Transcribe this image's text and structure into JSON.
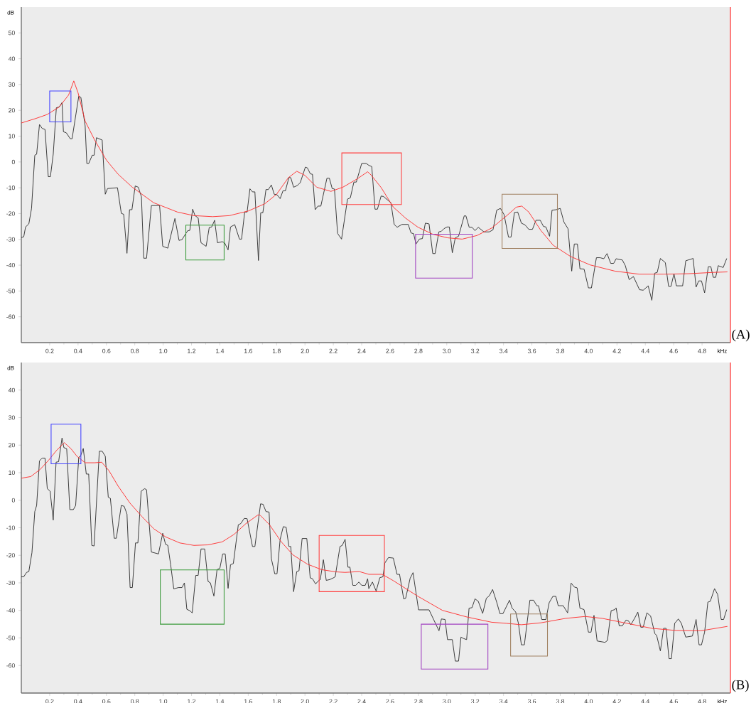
{
  "chart_data": [
    {
      "type": "line",
      "title": "(A)",
      "xlabel": "kHz",
      "ylabel": "dB",
      "marker": "none",
      "xlim": [
        0,
        5
      ],
      "ylim": [
        -70,
        60
      ],
      "xticks": [
        0.2,
        0.4,
        0.6,
        0.8,
        {
          "value": 1.0,
          "label": "1.0"
        },
        1.2,
        1.4,
        1.6,
        1.8,
        {
          "value": 2.0,
          "label": "2.0"
        },
        2.2,
        2.4,
        2.6,
        2.8,
        {
          "value": 3.0,
          "label": "3.0"
        },
        3.2,
        3.4,
        3.6,
        3.8,
        {
          "value": 4.0,
          "label": "4.0"
        },
        4.2,
        4.4,
        4.6,
        4.8
      ],
      "yticks": [
        50,
        40,
        30,
        20,
        10,
        0,
        -10,
        -20,
        -30,
        -40,
        -50,
        -60
      ],
      "ref_lines": [
        {
          "axis": "x",
          "value": 5,
          "color": "#ff4040"
        }
      ],
      "series": [
        {
          "color": "#303030",
          "x": [
            0,
            0.017,
            0.03,
            0.053,
            0.072,
            0.095,
            0.108,
            0.128,
            0.147,
            0.167,
            0.19,
            0.205,
            0.225,
            0.247,
            0.267,
            0.287,
            0.297,
            0.317,
            0.345,
            0.358,
            0.405,
            0.42,
            0.45,
            0.462,
            0.475,
            0.5,
            0.513,
            0.53,
            0.57,
            0.592,
            0.608,
            0.678,
            0.705,
            0.722,
            0.745,
            0.763,
            0.78,
            0.803,
            0.825,
            0.847,
            0.863,
            0.883,
            0.917,
            0.975,
            0.997,
            1.033,
            1.083,
            1.112,
            1.133,
            1.172,
            1.188,
            1.208,
            1.225,
            1.247,
            1.267,
            1.303,
            1.325,
            1.342,
            1.363,
            1.383,
            1.417,
            1.433,
            1.458,
            1.475,
            1.505,
            1.538,
            1.553,
            1.575,
            1.592,
            1.612,
            1.63,
            1.647,
            1.672,
            1.688,
            1.703,
            1.725,
            1.742,
            1.763,
            1.783,
            1.803,
            1.825,
            1.845,
            1.862,
            1.887,
            1.9,
            1.92,
            1.947,
            1.967,
            2.003,
            2.017,
            2.038,
            2.053,
            2.072,
            2.092,
            2.112,
            2.155,
            2.172,
            2.192,
            2.208,
            2.23,
            2.258,
            2.3,
            2.32,
            2.345,
            2.362,
            2.4,
            2.433,
            2.45,
            2.471,
            2.494,
            2.511,
            2.537,
            2.554,
            2.606,
            2.629,
            2.65,
            2.684,
            2.728,
            2.748,
            2.766,
            2.783,
            2.806,
            2.828,
            2.849,
            2.875,
            2.901,
            2.918,
            2.944,
            2.961,
            2.979,
            3.001,
            3.018,
            3.039,
            3.06,
            3.083,
            3.123,
            3.135,
            3.158,
            3.178,
            3.199,
            3.222,
            3.262,
            3.3,
            3.326,
            3.352,
            3.378,
            3.404,
            3.435,
            3.453,
            3.477,
            3.5,
            3.526,
            3.552,
            3.578,
            3.604,
            3.629,
            3.659,
            3.682,
            3.699,
            3.725,
            3.742,
            3.772,
            3.8,
            3.826,
            3.855,
            3.881,
            3.899,
            3.921,
            3.939,
            3.968,
            3.999,
            4.02,
            4.055,
            4.081,
            4.107,
            4.13,
            4.156,
            4.177,
            4.194,
            4.238,
            4.259,
            4.286,
            4.316,
            4.359,
            4.385,
            4.42,
            4.446,
            4.466,
            4.484,
            4.506,
            4.541,
            4.564,
            4.581,
            4.602,
            4.619,
            4.663,
            4.685,
            4.737,
            4.758,
            4.776,
            4.796,
            4.818,
            4.844,
            4.862,
            4.879,
            4.896,
            4.914,
            4.949,
            4.974
          ],
          "values": [
            -29.3,
            -29,
            -25.2,
            -24,
            -18,
            2.6,
            3,
            14.5,
            13,
            12.6,
            -5.7,
            -5.7,
            3,
            21,
            21.3,
            23,
            11.7,
            11.3,
            9,
            9,
            25.5,
            25,
            14,
            -0.6,
            -0.6,
            2.6,
            2.6,
            9.4,
            8.5,
            -12.5,
            -10.3,
            -10,
            -19.9,
            -20.3,
            -35.4,
            -18.5,
            -18.5,
            -9.3,
            -9.8,
            -13.5,
            -37.3,
            -37.3,
            -16.9,
            -16.9,
            -32.7,
            -33.4,
            -21.9,
            -30.4,
            -30.1,
            -26.7,
            -26.5,
            -18.3,
            -20.8,
            -21.7,
            -31.3,
            -32.7,
            -25.4,
            -25.2,
            -22.6,
            -31.3,
            -30.9,
            -31.3,
            -34.1,
            -25.2,
            -24.3,
            -29.9,
            -29.9,
            -19.4,
            -19.4,
            -10.4,
            -11.6,
            -11.6,
            -38.2,
            -19.7,
            -19.7,
            -10.7,
            -10.7,
            -8.9,
            -12.5,
            -12.7,
            -14.2,
            -11.2,
            -11.2,
            -6,
            -6.1,
            -9.8,
            -9.1,
            -8,
            -2,
            -2.3,
            -4.6,
            -4.8,
            -18.5,
            -17.1,
            -17.1,
            -6.3,
            -6.3,
            -10.3,
            -10.5,
            -27.7,
            -29.9,
            -14.4,
            -13.9,
            -7.8,
            -7.8,
            -0.6,
            -0.6,
            -1.3,
            -1.8,
            -18.3,
            -18.3,
            -13.2,
            -13.4,
            -15.8,
            -24.2,
            -25.3,
            -24.2,
            -24.2,
            -27.5,
            -27.8,
            -31.8,
            -29.9,
            -29.7,
            -23.7,
            -24,
            -35.5,
            -35.5,
            -27.1,
            -26.9,
            -25.9,
            -25.2,
            -25.2,
            -35.2,
            -29.4,
            -28.8,
            -20.9,
            -20.9,
            -25.3,
            -25.3,
            -26.6,
            -25.3,
            -27.1,
            -27.1,
            -26.3,
            -18.7,
            -18,
            -20.4,
            -29.1,
            -29.1,
            -19.6,
            -19.4,
            -23.7,
            -24.4,
            -26.1,
            -26.1,
            -22.6,
            -22.6,
            -25,
            -25.2,
            -28.8,
            -18.7,
            -18.5,
            -18,
            -23.3,
            -25.9,
            -42.3,
            -31.8,
            -31.8,
            -41.4,
            -41.5,
            -48.8,
            -48.8,
            -37.1,
            -37.1,
            -37.5,
            -35.5,
            -39.3,
            -39.3,
            -37.5,
            -38,
            -40.2,
            -45.6,
            -44.4,
            -49.5,
            -49.7,
            -48,
            -53.6,
            -43.1,
            -42.8,
            -37.4,
            -39,
            -48.2,
            -48.2,
            -43.3,
            -48,
            -48,
            -38.3,
            -37.4,
            -48.5,
            -46.1,
            -46.1,
            -50.7,
            -40.6,
            -40.6,
            -44.7,
            -44.7,
            -40.2,
            -40.9,
            -37.4
          ]
        },
        {
          "color": "#ff3030",
          "x": [
            0,
            0.1,
            0.183,
            0.267,
            0.333,
            0.37,
            0.4,
            0.45,
            0.517,
            0.6,
            0.683,
            0.783,
            0.933,
            1.1,
            1.217,
            1.35,
            1.467,
            1.6,
            1.717,
            1.8,
            1.883,
            1.942,
            2,
            2.083,
            2.183,
            2.267,
            2.367,
            2.442,
            2.467,
            2.537,
            2.623,
            2.71,
            2.797,
            2.901,
            3.005,
            3.109,
            3.213,
            3.317,
            3.421,
            3.491,
            3.529,
            3.578,
            3.664,
            3.751,
            3.872,
            4.011,
            4.185,
            4.358,
            4.532,
            4.705,
            4.879,
            4.979
          ],
          "values": [
            15.1,
            16.8,
            18.4,
            21.3,
            25.9,
            31.4,
            26.8,
            15.8,
            8.5,
            0.7,
            -4.8,
            -9.8,
            -15.8,
            -19.4,
            -20.8,
            -21.2,
            -20.8,
            -19,
            -16.2,
            -12.5,
            -6.1,
            -3.6,
            -5.2,
            -9.8,
            -11.4,
            -9.8,
            -6.6,
            -3.8,
            -5.1,
            -9.9,
            -17.5,
            -21.8,
            -25.3,
            -28,
            -29.4,
            -29.9,
            -28.5,
            -25.6,
            -20.9,
            -17.5,
            -17.1,
            -19.4,
            -26.6,
            -32.3,
            -36.6,
            -39.9,
            -42.3,
            -43.5,
            -43.5,
            -43.3,
            -42.8,
            -42.6
          ]
        }
      ]
    },
    {
      "type": "line",
      "title": "(B)",
      "xlabel": "kHz",
      "ylabel": "dB",
      "marker": "none",
      "xlim": [
        0,
        5
      ],
      "ylim": [
        -70,
        50
      ],
      "xticks": [
        0.2,
        0.4,
        0.6,
        0.8,
        {
          "value": 1.0,
          "label": "1.0"
        },
        1.2,
        1.4,
        1.6,
        1.8,
        {
          "value": 2.0,
          "label": "2.0"
        },
        2.2,
        2.4,
        2.6,
        2.8,
        {
          "value": 3.0,
          "label": "3.0"
        },
        3.2,
        3.4,
        3.6,
        3.8,
        {
          "value": 4.0,
          "label": "4.0"
        },
        4.2,
        4.4,
        4.6,
        4.8
      ],
      "yticks": [
        40,
        30,
        20,
        10,
        0,
        -10,
        -20,
        -30,
        -40,
        -50,
        -60
      ],
      "ref_lines": [
        {
          "axis": "x",
          "value": 5,
          "color": "#ff4040"
        }
      ],
      "series": [
        {
          "color": "#303030",
          "x": [
            0,
            0.017,
            0.037,
            0.053,
            0.075,
            0.095,
            0.108,
            0.128,
            0.147,
            0.167,
            0.183,
            0.203,
            0.225,
            0.245,
            0.263,
            0.287,
            0.3,
            0.32,
            0.342,
            0.367,
            0.383,
            0.405,
            0.417,
            0.437,
            0.458,
            0.475,
            0.497,
            0.513,
            0.55,
            0.57,
            0.592,
            0.613,
            0.628,
            0.655,
            0.67,
            0.705,
            0.725,
            0.745,
            0.767,
            0.783,
            0.805,
            0.822,
            0.845,
            0.87,
            0.883,
            0.917,
            0.967,
            0.997,
            1.017,
            1.033,
            1.053,
            1.075,
            1.108,
            1.133,
            1.15,
            1.167,
            1.188,
            1.205,
            1.23,
            1.247,
            1.267,
            1.293,
            1.317,
            1.333,
            1.358,
            1.38,
            1.4,
            1.42,
            1.438,
            1.458,
            1.475,
            1.495,
            1.53,
            1.547,
            1.572,
            1.592,
            1.63,
            1.647,
            1.687,
            1.705,
            1.725,
            1.747,
            1.763,
            1.787,
            1.803,
            1.825,
            1.847,
            1.867,
            1.887,
            1.9,
            1.92,
            1.942,
            1.958,
            1.98,
            2.013,
            2.037,
            2.053,
            2.075,
            2.092,
            2.108,
            2.13,
            2.15,
            2.175,
            2.2,
            2.213,
            2.247,
            2.263,
            2.283,
            2.303,
            2.317,
            2.338,
            2.358,
            2.38,
            2.4,
            2.425,
            2.442,
            2.45,
            2.476,
            2.502,
            2.528,
            2.55,
            2.563,
            2.589,
            2.623,
            2.649,
            2.667,
            2.696,
            2.71,
            2.742,
            2.762,
            2.783,
            2.801,
            2.875,
            2.945,
            2.962,
            2.988,
            3.005,
            3.039,
            3.06,
            3.083,
            3.1,
            3.118,
            3.14,
            3.157,
            3.178,
            3.199,
            3.222,
            3.253,
            3.279,
            3.3,
            3.323,
            3.352,
            3.375,
            3.396,
            3.442,
            3.461,
            3.486,
            3.505,
            3.526,
            3.547,
            3.586,
            3.612,
            3.635,
            3.647,
            3.67,
            3.699,
            3.722,
            3.748,
            3.769,
            3.786,
            3.821,
            3.852,
            3.877,
            3.899,
            3.919,
            3.939,
            3.968,
            3.999,
            4.017,
            4.038,
            4.06,
            4.116,
            4.133,
            4.159,
            4.185,
            4.194,
            4.216,
            4.238,
            4.264,
            4.281,
            4.298,
            4.324,
            4.347,
            4.368,
            4.385,
            4.411,
            4.437,
            4.467,
            4.48,
            4.506,
            4.529,
            4.546,
            4.567,
            4.584,
            4.607,
            4.633,
            4.654,
            4.685,
            4.732,
            4.758,
            4.779,
            4.796,
            4.818,
            4.841,
            4.858,
            4.888,
            4.91,
            4.935,
            4.952,
            4.974
          ],
          "values": [
            -27.8,
            -27.8,
            -26.2,
            -25.9,
            -19,
            -4.1,
            -1.9,
            14.3,
            15.3,
            15.3,
            4.2,
            3.3,
            -7.2,
            13.8,
            14,
            22.6,
            19.1,
            18.7,
            -3.4,
            -3.4,
            -1.9,
            15.6,
            16,
            18.8,
            9.5,
            9.5,
            -16.4,
            -16.6,
            17.8,
            17.8,
            16,
            1.1,
            0.7,
            -13.8,
            -13.8,
            -1.9,
            -2.2,
            -5,
            -31.7,
            -31.7,
            -15.5,
            -15.5,
            3.3,
            4.2,
            3.8,
            -18.8,
            -19.5,
            -12,
            -16,
            -16.4,
            -23.4,
            -32.2,
            -31.7,
            -31.7,
            -30,
            -39.6,
            -40.1,
            -40.9,
            -27.3,
            -27.3,
            -17.7,
            -17.7,
            -29.5,
            -30,
            -34.8,
            -25.2,
            -24.7,
            -19.5,
            -19.5,
            -32,
            -23.4,
            -23,
            -8.9,
            -8.5,
            -6.6,
            -6.7,
            -16.8,
            -16.8,
            -1.3,
            -1.5,
            -4.1,
            -4.3,
            -21.2,
            -26.7,
            -26.7,
            -14.2,
            -9.6,
            -9.8,
            -16.8,
            -16.8,
            -33.2,
            -25.9,
            -25.6,
            -13.9,
            -13.9,
            -28.2,
            -28.5,
            -30.4,
            -29.4,
            -28.8,
            -21.6,
            -29.1,
            -28.8,
            -28.2,
            -27.8,
            -16.8,
            -16.4,
            -14.2,
            -24.3,
            -24.3,
            -30.9,
            -30.9,
            -29.7,
            -30.9,
            -30.9,
            -28.5,
            -32.1,
            -29.7,
            -33,
            -28.1,
            -27.8,
            -22.8,
            -20.8,
            -21,
            -26.9,
            -26.9,
            -35.8,
            -35.6,
            -28.3,
            -26.3,
            -33.6,
            -39.8,
            -39.8,
            -47.4,
            -43.1,
            -43.3,
            -50.6,
            -50.6,
            -58.4,
            -58.4,
            -49.7,
            -50.2,
            -50.6,
            -39.2,
            -39,
            -35.8,
            -36.7,
            -41.1,
            -35.6,
            -34.7,
            -32.4,
            -37,
            -41.2,
            -41.2,
            -36.3,
            -39.2,
            -40.6,
            -44.7,
            -52.5,
            -52.5,
            -36.3,
            -36.3,
            -38.3,
            -38.3,
            -43.3,
            -43.3,
            -37.2,
            -34.9,
            -34.9,
            -38.3,
            -38.3,
            -40.9,
            -30.1,
            -31.5,
            -31.8,
            -39.2,
            -39.7,
            -47.9,
            -47.9,
            -41.8,
            -51.1,
            -51.6,
            -50.9,
            -40.1,
            -39.7,
            -39.1,
            -45.6,
            -45.6,
            -43.5,
            -43.8,
            -45.2,
            -42.9,
            -40.6,
            -46.1,
            -46.1,
            -40.9,
            -42,
            -48.4,
            -49.1,
            -54.7,
            -46.5,
            -46.5,
            -57.5,
            -57.5,
            -44.7,
            -43.1,
            -44.7,
            -49.7,
            -49.3,
            -43.3,
            -52.5,
            -52.5,
            -47.9,
            -37,
            -36.7,
            -32.1,
            -34.2,
            -43.3,
            -43.3,
            -39.7
          ]
        },
        {
          "color": "#ff3030",
          "x": [
            0,
            0.067,
            0.133,
            0.192,
            0.25,
            0.303,
            0.35,
            0.392,
            0.45,
            0.517,
            0.567,
            0.617,
            0.683,
            0.767,
            0.85,
            0.933,
            1.017,
            1.117,
            1.217,
            1.317,
            1.417,
            1.5,
            1.583,
            1.667,
            1.683,
            1.75,
            1.833,
            1.917,
            2.017,
            2.117,
            2.217,
            2.283,
            2.383,
            2.45,
            2.545,
            2.623,
            2.797,
            2.97,
            3.143,
            3.317,
            3.421,
            3.526,
            3.664,
            3.837,
            3.976,
            4.097,
            4.271,
            4.445,
            4.618,
            4.792,
            4.979
          ],
          "values": [
            8,
            8.6,
            11.2,
            14.5,
            18.2,
            20.9,
            18.7,
            16,
            13.6,
            13.6,
            13.8,
            10.8,
            5.1,
            -1.1,
            -5.9,
            -10.3,
            -13.3,
            -15.5,
            -16.4,
            -16.2,
            -15.1,
            -12.4,
            -8.5,
            -5.4,
            -5.4,
            -8.9,
            -15.1,
            -19.9,
            -23.2,
            -25.2,
            -26,
            -26.2,
            -25.9,
            -26.9,
            -26.9,
            -29.2,
            -34.9,
            -40,
            -42.4,
            -44.3,
            -44.7,
            -45.2,
            -44.5,
            -42.9,
            -42.2,
            -42.9,
            -44.7,
            -46.5,
            -47.3,
            -47.4,
            -45.8
          ]
        }
      ]
    }
  ]
}
